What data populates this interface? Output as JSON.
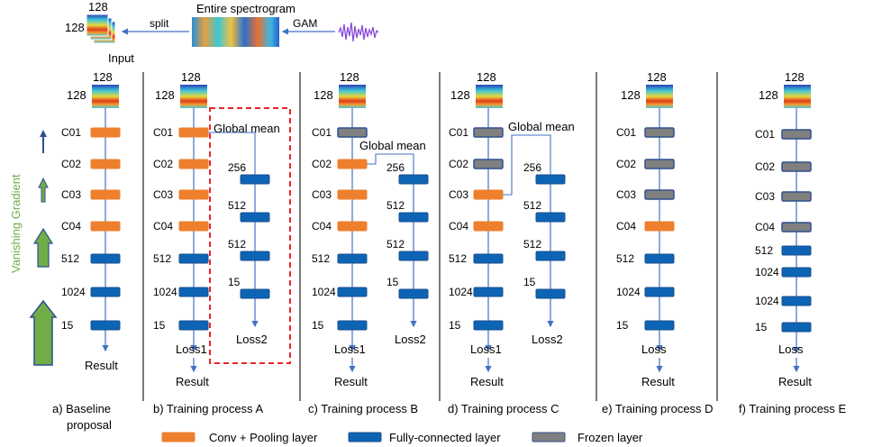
{
  "colors": {
    "conv": "#EE7F2D",
    "fc": "#0D64B5",
    "fc_border": "#1A4F8F",
    "frozen": "#808080",
    "frozen_border": "#2F4F8F",
    "arrow": "#4472C4",
    "vanishing": "#70AD47",
    "dashed_box": "#E8262A"
  },
  "header": {
    "spectrogram_title": "Entire spectrogram",
    "input_dim_a": "128",
    "input_dim_b": "128",
    "input_label": "Input",
    "split_label": "split",
    "gam_label": "GAM"
  },
  "vanishing_gradient": "Vanishing Gradient",
  "spec_dim": "128",
  "panels": [
    {
      "caption": "a) Baseline proposal",
      "main": [
        {
          "label": "C01",
          "kind": "conv"
        },
        {
          "label": "C02",
          "kind": "conv"
        },
        {
          "label": "C03",
          "kind": "conv"
        },
        {
          "label": "C04",
          "kind": "conv"
        },
        {
          "label": "512",
          "kind": "fc"
        },
        {
          "label": "1024",
          "kind": "fc"
        },
        {
          "label": "15",
          "kind": "fc"
        }
      ],
      "outputs": [
        "Result"
      ]
    },
    {
      "caption": "b) Training process A",
      "main": [
        {
          "label": "C01",
          "kind": "conv"
        },
        {
          "label": "C02",
          "kind": "conv"
        },
        {
          "label": "C03",
          "kind": "conv"
        },
        {
          "label": "C04",
          "kind": "conv"
        },
        {
          "label": "512",
          "kind": "fc"
        },
        {
          "label": "1024",
          "kind": "fc"
        },
        {
          "label": "15",
          "kind": "fc"
        }
      ],
      "outputs": [
        "Loss1",
        "Result"
      ],
      "branch": {
        "title": "Global mean",
        "labels": [
          "256",
          "512",
          "512",
          "15"
        ],
        "loss": "Loss2"
      }
    },
    {
      "caption": "c) Training process B",
      "main": [
        {
          "label": "C01",
          "kind": "frozen"
        },
        {
          "label": "C02",
          "kind": "conv"
        },
        {
          "label": "C03",
          "kind": "conv"
        },
        {
          "label": "C04",
          "kind": "conv"
        },
        {
          "label": "512",
          "kind": "fc"
        },
        {
          "label": "1024",
          "kind": "fc"
        },
        {
          "label": "15",
          "kind": "fc"
        }
      ],
      "outputs": [
        "Loss1",
        "Result"
      ],
      "branch": {
        "title": "Global mean",
        "labels": [
          "256",
          "512",
          "512",
          "15"
        ],
        "loss": "Loss2"
      }
    },
    {
      "caption": "d) Training process C",
      "main": [
        {
          "label": "C01",
          "kind": "frozen"
        },
        {
          "label": "C02",
          "kind": "frozen"
        },
        {
          "label": "C03",
          "kind": "conv"
        },
        {
          "label": "C04",
          "kind": "conv"
        },
        {
          "label": "512",
          "kind": "fc"
        },
        {
          "label": "1024",
          "kind": "fc"
        },
        {
          "label": "15",
          "kind": "fc"
        }
      ],
      "outputs": [
        "Loss1",
        "Result"
      ],
      "branch": {
        "title": "Global mean",
        "labels": [
          "256",
          "512",
          "512",
          "15"
        ],
        "loss": "Loss2"
      }
    },
    {
      "caption": "e) Training process D",
      "main": [
        {
          "label": "C01",
          "kind": "frozen"
        },
        {
          "label": "C02",
          "kind": "frozen"
        },
        {
          "label": "C03",
          "kind": "frozen"
        },
        {
          "label": "C04",
          "kind": "conv"
        },
        {
          "label": "512",
          "kind": "fc"
        },
        {
          "label": "1024",
          "kind": "fc"
        },
        {
          "label": "15",
          "kind": "fc"
        }
      ],
      "outputs": [
        "Loss",
        "Result"
      ]
    },
    {
      "caption": "f) Training process E",
      "main": [
        {
          "label": "C01",
          "kind": "frozen"
        },
        {
          "label": "C02",
          "kind": "frozen"
        },
        {
          "label": "C03",
          "kind": "frozen"
        },
        {
          "label": "C04",
          "kind": "frozen"
        },
        {
          "label": "512",
          "kind": "fc"
        },
        {
          "label": "1024",
          "kind": "fc"
        },
        {
          "label": "1024",
          "kind": "fc"
        },
        {
          "label": "15",
          "kind": "fc"
        }
      ],
      "outputs": [
        "Loss",
        "Result"
      ]
    }
  ],
  "legend": [
    {
      "label": "Conv + Pooling layer",
      "kind": "conv"
    },
    {
      "label": "Fully-connected layer",
      "kind": "fc"
    },
    {
      "label": "Frozen layer",
      "kind": "frozen"
    }
  ]
}
